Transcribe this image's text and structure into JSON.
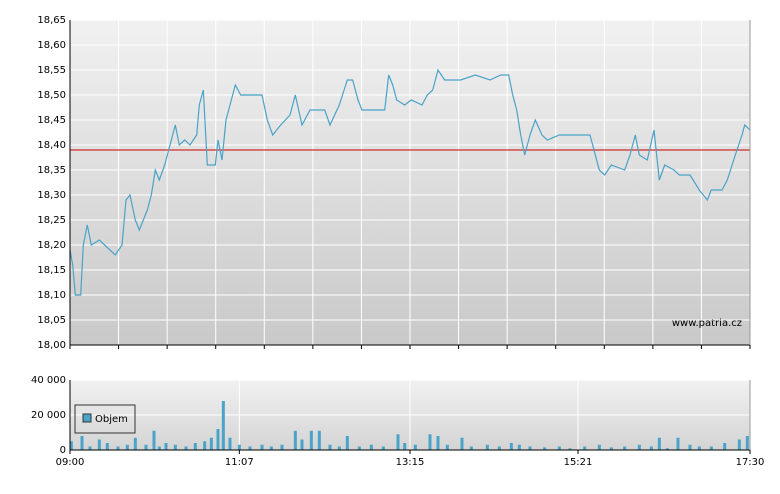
{
  "chart_data": [
    {
      "type": "line",
      "x": [
        "09:00",
        "09:02",
        "09:04",
        "09:08",
        "09:10",
        "09:13",
        "09:16",
        "09:22",
        "09:30",
        "09:34",
        "09:39",
        "09:42",
        "09:45",
        "09:49",
        "09:52",
        "09:58",
        "10:01",
        "10:04",
        "10:07",
        "10:11",
        "10:15",
        "10:19",
        "10:22",
        "10:26",
        "10:30",
        "10:35",
        "10:37",
        "10:40",
        "10:43",
        "10:49",
        "10:51",
        "10:54",
        "10:57",
        "11:00",
        "11:04",
        "11:08",
        "11:15",
        "11:24",
        "11:28",
        "11:32",
        "11:38",
        "11:45",
        "11:49",
        "11:54",
        "12:00",
        "12:11",
        "12:15",
        "12:22",
        "12:28",
        "12:32",
        "12:36",
        "12:39",
        "12:45",
        "12:56",
        "12:59",
        "13:02",
        "13:05",
        "13:11",
        "13:16",
        "13:24",
        "13:28",
        "13:32",
        "13:36",
        "13:41",
        "13:53",
        "14:04",
        "14:15",
        "14:23",
        "14:29",
        "14:32",
        "14:35",
        "14:38",
        "14:41",
        "14:45",
        "14:49",
        "14:54",
        "14:58",
        "15:07",
        "15:19",
        "15:30",
        "15:34",
        "15:37",
        "15:41",
        "15:46",
        "15:56",
        "16:00",
        "16:04",
        "16:07",
        "16:13",
        "16:18",
        "16:22",
        "16:26",
        "16:33",
        "16:37",
        "16:45",
        "16:52",
        "16:58",
        "17:01",
        "17:09",
        "17:13",
        "17:19",
        "17:24",
        "17:26",
        "17:30"
      ],
      "series": [
        {
          "color": "#4aa3c8",
          "values": [
            18.19,
            18.16,
            18.1,
            18.1,
            18.2,
            18.24,
            18.2,
            18.21,
            18.19,
            18.18,
            18.2,
            18.29,
            18.3,
            18.25,
            18.23,
            18.27,
            18.3,
            18.35,
            18.33,
            18.36,
            18.4,
            18.44,
            18.4,
            18.41,
            18.4,
            18.42,
            18.48,
            18.51,
            18.36,
            18.36,
            18.41,
            18.37,
            18.45,
            18.48,
            18.52,
            18.5,
            18.5,
            18.5,
            18.45,
            18.42,
            18.44,
            18.46,
            18.5,
            18.44,
            18.47,
            18.47,
            18.44,
            18.48,
            18.53,
            18.53,
            18.49,
            18.47,
            18.47,
            18.47,
            18.54,
            18.52,
            18.49,
            18.48,
            18.49,
            18.48,
            18.5,
            18.51,
            18.55,
            18.53,
            18.53,
            18.54,
            18.53,
            18.54,
            18.54,
            18.5,
            18.47,
            18.42,
            18.38,
            18.42,
            18.45,
            18.42,
            18.41,
            18.42,
            18.42,
            18.42,
            18.38,
            18.35,
            18.34,
            18.36,
            18.35,
            18.38,
            18.42,
            18.38,
            18.37,
            18.43,
            18.33,
            18.36,
            18.35,
            18.34,
            18.34,
            18.31,
            18.29,
            18.31,
            18.31,
            18.33,
            18.38,
            18.42,
            18.44,
            18.43
          ]
        }
      ],
      "reference_line": {
        "value": 18.39,
        "color": "#cc0000"
      },
      "watermark": "www.patria.cz",
      "xlim": [
        "09:00",
        "17:30"
      ],
      "ylim": [
        18.0,
        18.65
      ],
      "yticks": [
        {
          "value": 18.0,
          "label": "18,00"
        },
        {
          "value": 18.05,
          "label": "18,05"
        },
        {
          "value": 18.1,
          "label": "18,10"
        },
        {
          "value": 18.15,
          "label": "18,15"
        },
        {
          "value": 18.2,
          "label": "18,20"
        },
        {
          "value": 18.25,
          "label": "18,25"
        },
        {
          "value": 18.3,
          "label": "18,30"
        },
        {
          "value": 18.35,
          "label": "18,35"
        },
        {
          "value": 18.4,
          "label": "18,40"
        },
        {
          "value": 18.45,
          "label": "18,45"
        },
        {
          "value": 18.5,
          "label": "18,50"
        },
        {
          "value": 18.55,
          "label": "18,55"
        },
        {
          "value": 18.6,
          "label": "18,60"
        },
        {
          "value": 18.65,
          "label": "18,65"
        }
      ]
    },
    {
      "type": "bar",
      "x": [
        "09:01",
        "09:09",
        "09:15",
        "09:22",
        "09:28",
        "09:36",
        "09:43",
        "09:49",
        "09:57",
        "10:03",
        "10:07",
        "10:12",
        "10:19",
        "10:27",
        "10:34",
        "10:41",
        "10:46",
        "10:51",
        "10:55",
        "11:00",
        "11:07",
        "11:15",
        "11:24",
        "11:31",
        "11:39",
        "11:49",
        "11:54",
        "12:01",
        "12:07",
        "12:15",
        "12:22",
        "12:28",
        "12:37",
        "12:46",
        "12:55",
        "13:06",
        "13:11",
        "13:19",
        "13:30",
        "13:36",
        "13:43",
        "13:54",
        "14:01",
        "14:13",
        "14:22",
        "14:31",
        "14:37",
        "14:45",
        "14:56",
        "15:07",
        "15:15",
        "15:26",
        "15:37",
        "15:46",
        "15:56",
        "16:07",
        "16:16",
        "16:22",
        "16:28",
        "16:36",
        "16:45",
        "16:52",
        "17:01",
        "17:11",
        "17:22",
        "17:28"
      ],
      "series": [
        {
          "name": "Objem",
          "color": "#4aa3c8",
          "values": [
            5000,
            8000,
            2000,
            6000,
            4000,
            2000,
            3000,
            7000,
            3000,
            11000,
            2000,
            4000,
            3000,
            2000,
            4000,
            5000,
            7000,
            12000,
            28000,
            7000,
            3000,
            2000,
            3000,
            2000,
            3000,
            11000,
            6000,
            11000,
            11000,
            3000,
            2000,
            8000,
            2000,
            3000,
            2000,
            9000,
            4000,
            3000,
            9000,
            8000,
            3000,
            7000,
            2000,
            3000,
            2000,
            4000,
            3000,
            2000,
            1500,
            2000,
            1000,
            2000,
            3000,
            1500,
            2000,
            3000,
            2000,
            7000,
            1000,
            7000,
            3000,
            2000,
            2000,
            4000,
            6000,
            8000
          ]
        }
      ],
      "xlim": [
        "09:00",
        "17:30"
      ],
      "xticks": [
        "09:00",
        "11:07",
        "13:15",
        "15:21",
        "17:30"
      ],
      "ylim": [
        0,
        40000
      ],
      "yticks": [
        0,
        {
          "value": 20000,
          "label": "20 000"
        },
        {
          "value": 40000,
          "label": "40 000"
        }
      ]
    }
  ]
}
